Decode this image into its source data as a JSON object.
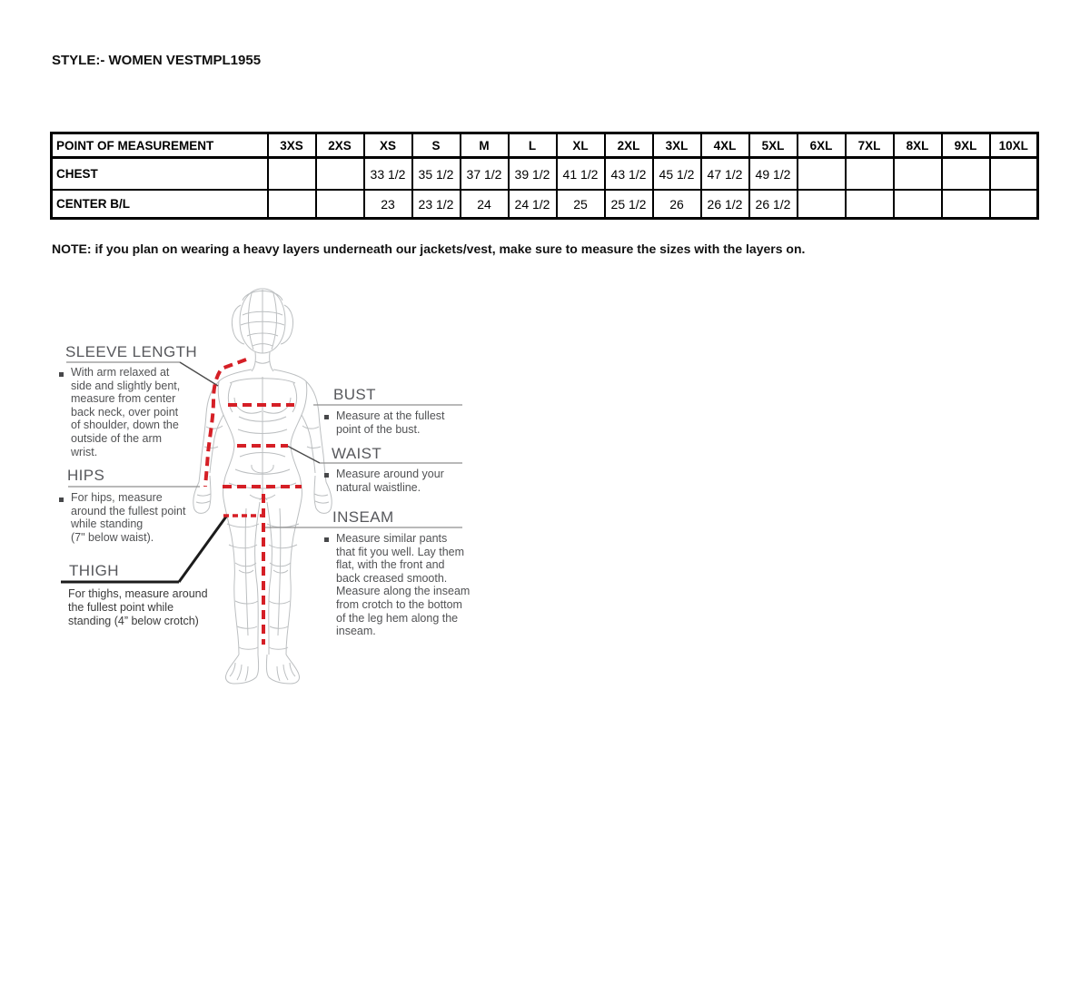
{
  "document": {
    "style_label": "STYLE:- WOMEN VEST",
    "style_code": "MPL1955",
    "note": "NOTE: if you plan on wearing a heavy layers underneath our jackets/vest, make sure to measure the sizes with the layers on."
  },
  "size_table": {
    "columns": [
      "POINT OF MEASUREMENT",
      "3XS",
      "2XS",
      "XS",
      "S",
      "M",
      "L",
      "XL",
      "2XL",
      "3XL",
      "4XL",
      "5XL",
      "6XL",
      "7XL",
      "8XL",
      "9XL",
      "10XL"
    ],
    "rows": [
      {
        "label": "CHEST",
        "values": [
          "",
          "",
          "33 1/2",
          "35 1/2",
          "37 1/2",
          "39 1/2",
          "41 1/2",
          "43 1/2",
          "45 1/2",
          "47 1/2",
          "49 1/2",
          "",
          "",
          "",
          "",
          ""
        ]
      },
      {
        "label": "CENTER B/L",
        "values": [
          "",
          "",
          "23",
          "23 1/2",
          "24",
          "24 1/2",
          "25",
          "25 1/2",
          "26",
          "26 1/2",
          "26 1/2",
          "",
          "",
          "",
          "",
          ""
        ]
      }
    ]
  },
  "guide": {
    "sleeve_length": {
      "heading": "SLEEVE LENGTH",
      "lines": [
        "With arm relaxed at",
        "side and slightly bent,",
        "measure from center",
        "back neck, over point",
        "of shoulder, down the",
        "outside of the arm",
        "wrist."
      ]
    },
    "hips": {
      "heading": "HIPS",
      "lines": [
        "For hips, measure",
        "around the fullest point",
        "while standing",
        "(7\" below waist)."
      ]
    },
    "thigh": {
      "heading": "THIGH",
      "lines": [
        "For thighs, measure around",
        "the fullest point while",
        "standing (4” below crotch)"
      ]
    },
    "bust": {
      "heading": "BUST",
      "lines": [
        "Measure at the fullest",
        "point of the bust."
      ]
    },
    "waist": {
      "heading": "WAIST",
      "lines": [
        "Measure around your",
        "natural waistline."
      ]
    },
    "inseam": {
      "heading": "INSEAM",
      "lines": [
        "Measure similar pants",
        "that fit you well. Lay them",
        "flat, with the front and",
        "back creased smooth.",
        "Measure along the inseam",
        "from crotch to the bottom",
        "of the leg hem along the",
        "inseam."
      ]
    }
  },
  "colors": {
    "measurement_line": "#d51f26",
    "figure_outline": "#bcbfc1",
    "guide_text": "#515254"
  }
}
